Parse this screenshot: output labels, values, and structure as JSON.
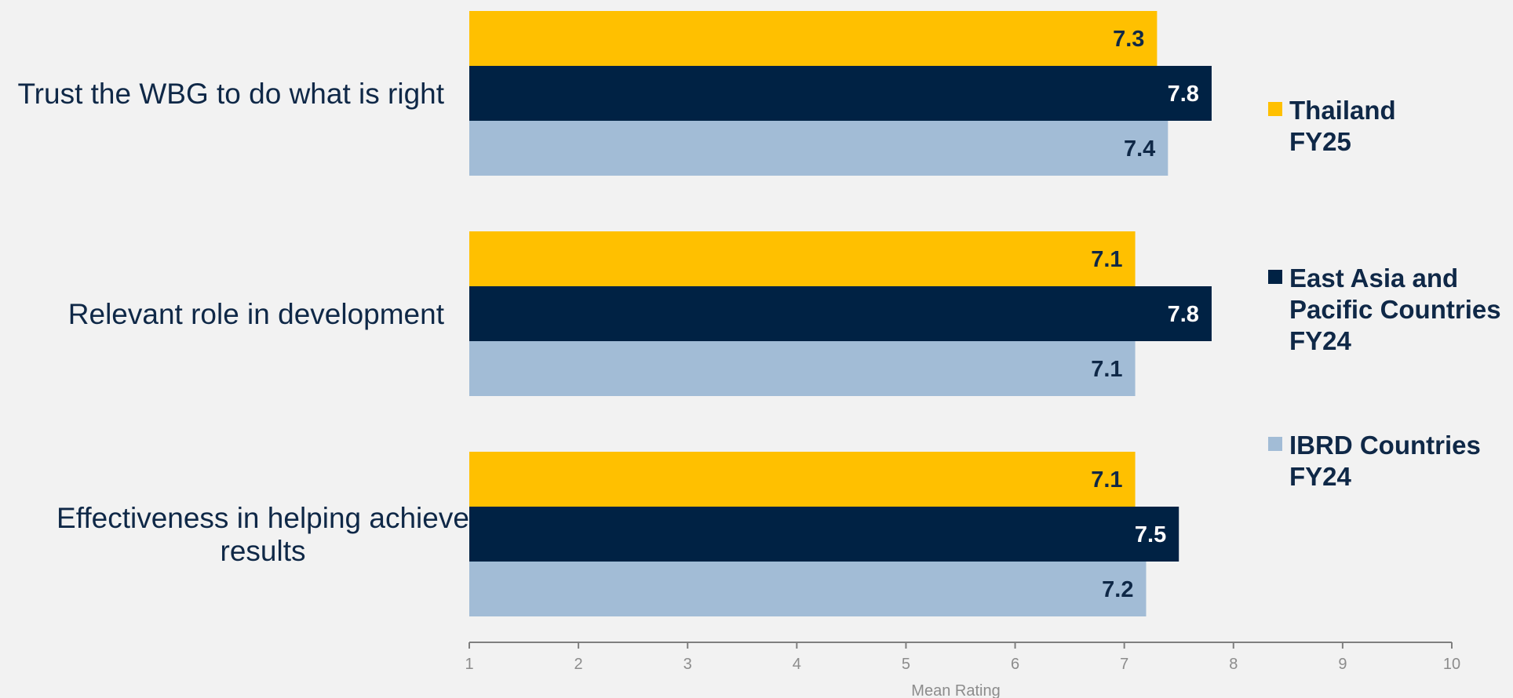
{
  "chart_data": {
    "type": "bar",
    "orientation": "horizontal",
    "categories": [
      "Trust the WBG to do what is right",
      "Relevant role in development",
      "Effectiveness in helping achieve results"
    ],
    "category_lines": [
      [
        "Trust the WBG to do what is right"
      ],
      [
        "Relevant role in development"
      ],
      [
        "Effectiveness in helping achieve",
        "results"
      ]
    ],
    "series": [
      {
        "name": "Thailand FY25",
        "name_lines": [
          "Thailand",
          "FY25"
        ],
        "color": "#ffc000",
        "label_color": "#0f2847",
        "values": [
          7.3,
          7.1,
          7.1
        ],
        "display": [
          "7.3",
          "7.1",
          "7.1"
        ]
      },
      {
        "name": "East Asia and Pacific Countries FY24",
        "name_lines": [
          "East Asia and",
          "Pacific Countries",
          "FY24"
        ],
        "color": "#002244",
        "label_color": "#ffffff",
        "values": [
          7.8,
          7.8,
          7.5
        ],
        "display": [
          "7.8",
          "7.8",
          "7.5"
        ]
      },
      {
        "name": "IBRD Countries FY24",
        "name_lines": [
          "IBRD Countries",
          "FY24"
        ],
        "color": "#a2bcd6",
        "label_color": "#0f2847",
        "values": [
          7.4,
          7.1,
          7.2
        ],
        "display": [
          "7.4",
          "7.1",
          "7.2"
        ]
      }
    ],
    "xlim": [
      1,
      10
    ],
    "xticks": [
      "1",
      "2",
      "3",
      "4",
      "5",
      "6",
      "7",
      "8",
      "9",
      "10"
    ],
    "xlabel": "Mean Rating",
    "legend_position": "right",
    "grid": false
  }
}
